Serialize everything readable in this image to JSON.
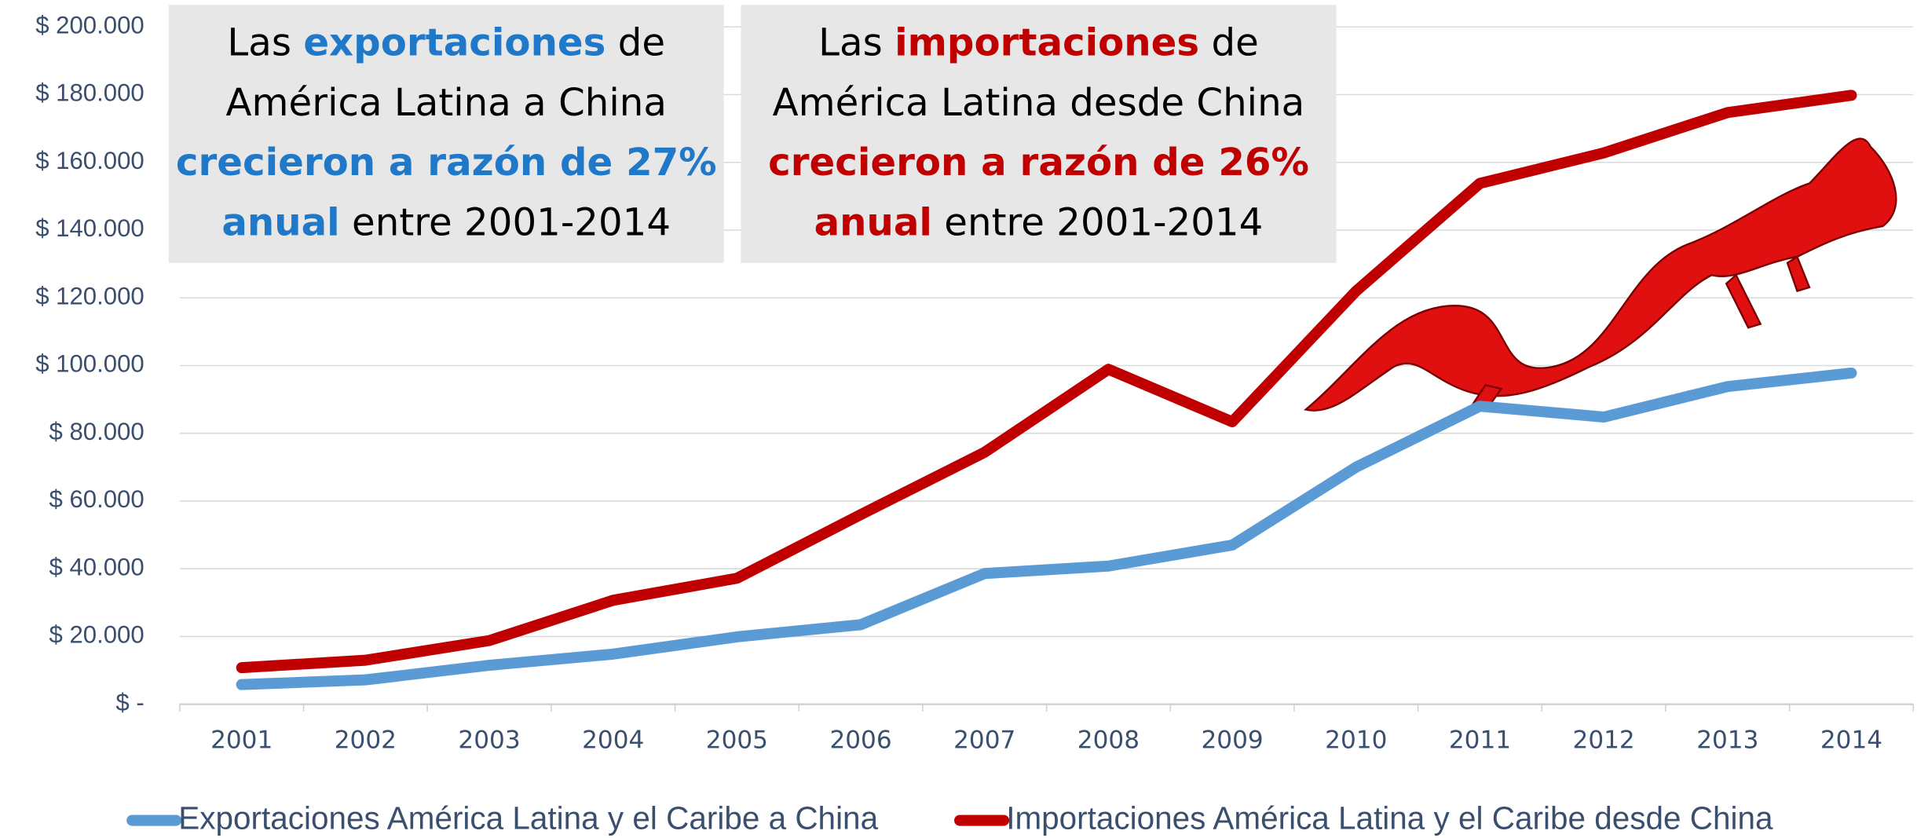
{
  "chart_data": {
    "type": "line",
    "categories": [
      "2001",
      "2002",
      "2003",
      "2004",
      "2005",
      "2006",
      "2007",
      "2008",
      "2009",
      "2010",
      "2011",
      "2012",
      "2013",
      "2014"
    ],
    "series": [
      {
        "name": "Exportaciones América Latina y el Caribe a China",
        "color": "#5b9bd5",
        "values": [
          5800,
          7200,
          11500,
          14800,
          19900,
          23500,
          38600,
          40800,
          47000,
          70000,
          88000,
          84800,
          93800,
          97800
        ]
      },
      {
        "name": "Importaciones América Latina y el Caribe desde China",
        "color": "#c00000",
        "values": [
          10800,
          13000,
          18800,
          30700,
          37200,
          56000,
          74400,
          98900,
          83400,
          122000,
          153800,
          162800,
          174700,
          179800
        ]
      }
    ],
    "ylim": [
      0,
      200000
    ],
    "yticks": [
      {
        "value": 0,
        "label": "$ -"
      },
      {
        "value": 20000,
        "label": "$ 20.000"
      },
      {
        "value": 40000,
        "label": "$ 40.000"
      },
      {
        "value": 60000,
        "label": "$ 60.000"
      },
      {
        "value": 80000,
        "label": "$ 80.000"
      },
      {
        "value": 100000,
        "label": "$ 100.000"
      },
      {
        "value": 120000,
        "label": "$ 120.000"
      },
      {
        "value": 140000,
        "label": "$ 140.000"
      },
      {
        "value": 160000,
        "label": "$ 160.000"
      },
      {
        "value": 180000,
        "label": "$ 180.000"
      },
      {
        "value": 200000,
        "label": "$ 200.000"
      }
    ],
    "grid": true,
    "legend": "bottom",
    "annotations": [
      {
        "lines": [
          [
            {
              "text": "Las "
            },
            {
              "text": "exportaciones",
              "color": "#1f78c8",
              "bold": true
            },
            {
              "text": " de"
            }
          ],
          [
            {
              "text": "América Latina a China"
            }
          ],
          [
            {
              "text": "crecieron a razón de 27%",
              "color": "#1f78c8",
              "bold": true
            }
          ],
          [
            {
              "text": "anual",
              "color": "#1f78c8",
              "bold": true
            },
            {
              "text": " entre 2001-2014"
            }
          ]
        ]
      },
      {
        "lines": [
          [
            {
              "text": "Las "
            },
            {
              "text": "importaciones",
              "color": "#c00000",
              "bold": true
            },
            {
              "text": " de"
            }
          ],
          [
            {
              "text": "América Latina desde China"
            }
          ],
          [
            {
              "text": "crecieron a razón de 26%",
              "color": "#c00000",
              "bold": true
            }
          ],
          [
            {
              "text": "anual",
              "color": "#c00000",
              "bold": true
            },
            {
              "text": " entre 2001-2014"
            }
          ]
        ]
      }
    ]
  }
}
